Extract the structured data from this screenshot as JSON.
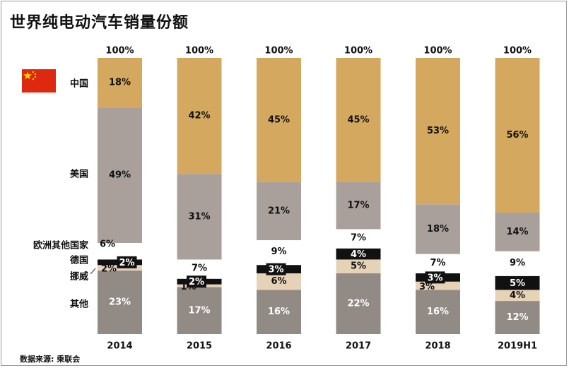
{
  "title": "世界纯电动汽车销量份额",
  "source": "数据来源: 乘联会",
  "flag_icon": "china-flag-icon",
  "colors": {
    "中国": "#d4a85e",
    "美国": "#a9a09c",
    "欧洲其他国家": "#ffffff",
    "德国": "#111111",
    "挪威": "#e6d2b7",
    "其他": "#928a85"
  },
  "chart_data": {
    "type": "bar",
    "stacked": true,
    "title": "世界纯电动汽车销量份额",
    "categories": [
      "2014",
      "2015",
      "2016",
      "2017",
      "2018",
      "2019H1"
    ],
    "totals": [
      "100%",
      "100%",
      "100%",
      "100%",
      "100%",
      "100%"
    ],
    "ylim": [
      0,
      100
    ],
    "series": [
      {
        "name": "其他",
        "values": [
          23,
          17,
          16,
          22,
          16,
          12
        ]
      },
      {
        "name": "挪威",
        "values": [
          2,
          1,
          6,
          5,
          3,
          4
        ]
      },
      {
        "name": "德国",
        "values": [
          2,
          2,
          3,
          4,
          3,
          5
        ]
      },
      {
        "name": "欧洲其他国家",
        "values": [
          6,
          7,
          9,
          7,
          7,
          9
        ]
      },
      {
        "name": "美国",
        "values": [
          49,
          31,
          21,
          17,
          18,
          14
        ]
      },
      {
        "name": "中国",
        "values": [
          18,
          42,
          45,
          45,
          53,
          56
        ]
      }
    ]
  }
}
